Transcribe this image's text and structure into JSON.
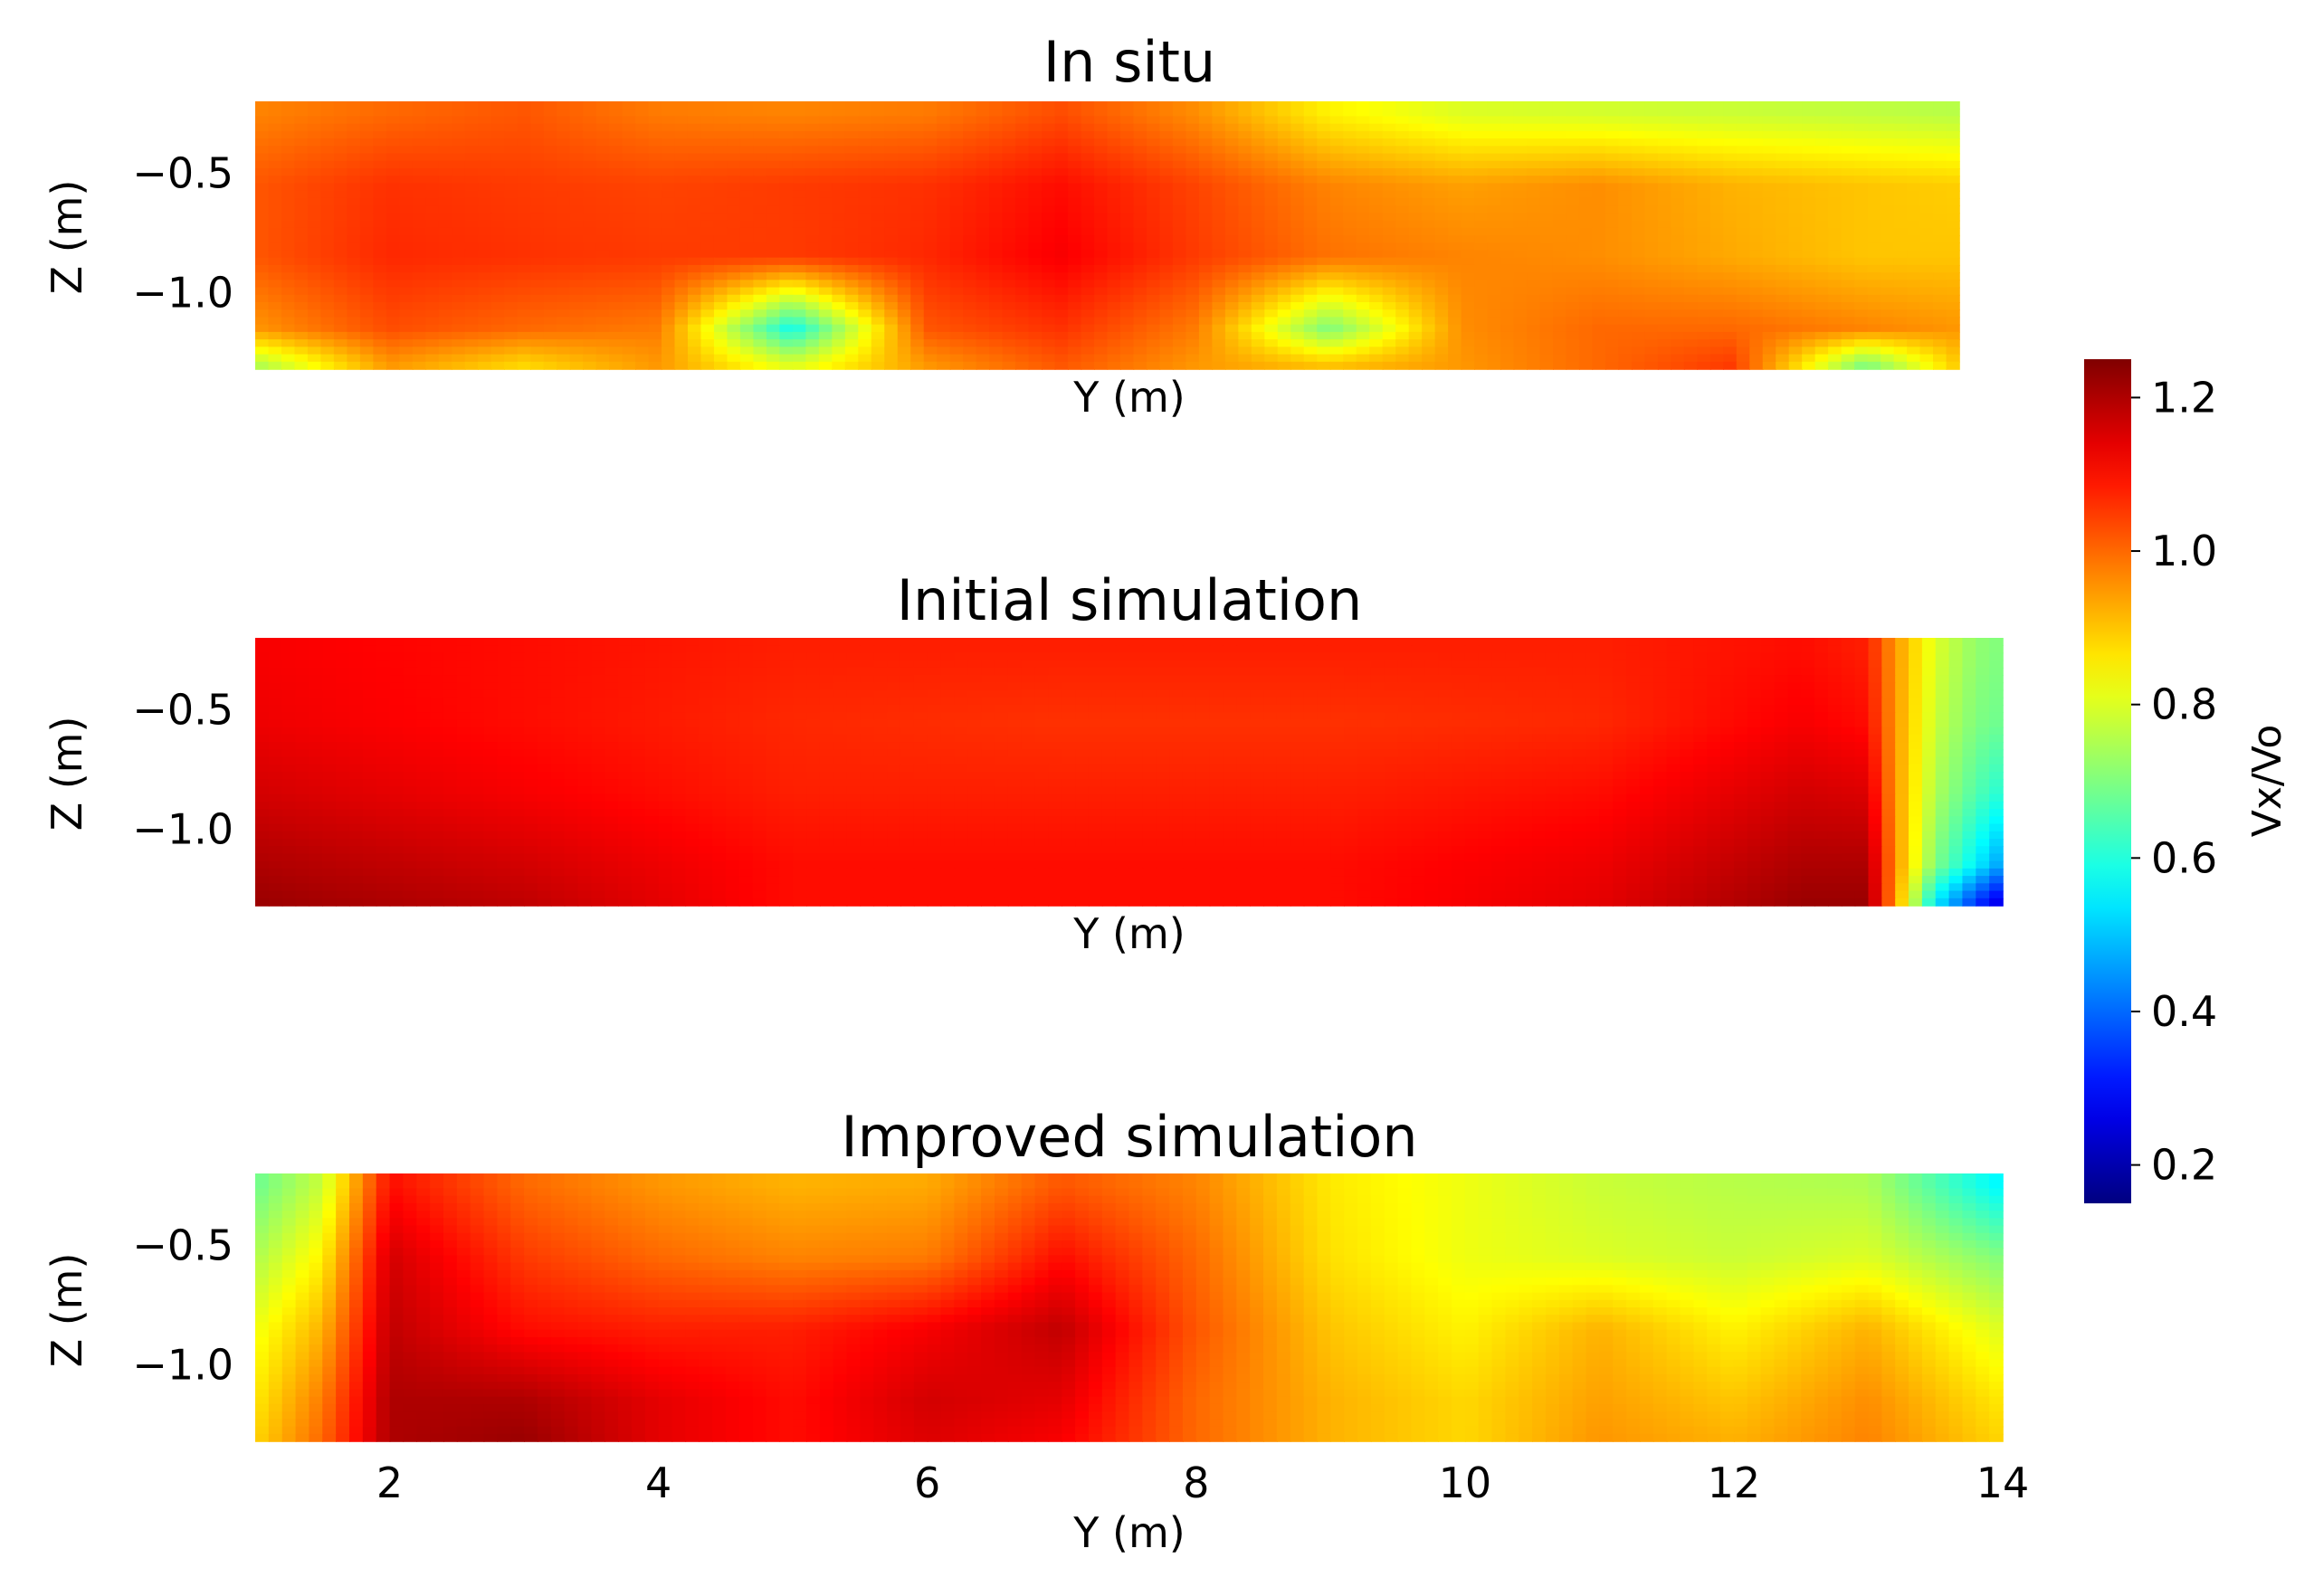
{
  "chart_data": [
    {
      "type": "heatmap",
      "title": "In situ",
      "xlabel": "Y (m)",
      "ylabel": "Z (m)",
      "xlim": [
        1.0,
        13.7
      ],
      "ylim": [
        -1.32,
        -0.2
      ],
      "yticks": [
        -0.5,
        -1.0
      ],
      "ytick_labels": [
        "−0.5",
        "−1.0"
      ],
      "field": {
        "x": [
          1.0,
          2.0,
          3.0,
          4.0,
          5.0,
          6.0,
          7.0,
          8.0,
          9.0,
          10.0,
          11.0,
          12.0,
          13.0,
          13.7
        ],
        "z": [
          -0.25,
          -0.55,
          -0.85,
          -1.15,
          -1.3
        ],
        "values": [
          [
            0.97,
            1.0,
            1.02,
            0.98,
            0.97,
            0.98,
            1.03,
            0.96,
            0.85,
            0.8,
            0.79,
            0.78,
            0.77,
            0.76
          ],
          [
            1.02,
            1.06,
            1.05,
            1.04,
            1.05,
            1.06,
            1.1,
            1.04,
            0.97,
            0.94,
            0.96,
            0.92,
            0.9,
            0.89
          ],
          [
            1.02,
            1.07,
            1.06,
            1.05,
            1.05,
            1.07,
            1.12,
            1.05,
            0.99,
            0.97,
            0.96,
            0.93,
            0.9,
            0.9
          ],
          [
            0.95,
            1.03,
            1.0,
            0.98,
            0.58,
            1.02,
            1.06,
            0.98,
            0.7,
            0.96,
            1.0,
            1.0,
            0.97,
            0.95
          ],
          [
            0.75,
            0.95,
            0.88,
            0.95,
            0.8,
            0.95,
            1.02,
            0.95,
            0.9,
            0.95,
            1.0,
            1.05,
            0.7,
            0.9
          ]
        ]
      }
    },
    {
      "type": "heatmap",
      "title": "Initial simulation",
      "xlabel": "Y (m)",
      "ylabel": "Z (m)",
      "xlim": [
        1.0,
        14.0
      ],
      "ylim": [
        -1.32,
        -0.2
      ],
      "yticks": [
        -0.5,
        -1.0
      ],
      "ytick_labels": [
        "−0.5",
        "−1.0"
      ],
      "field": {
        "x": [
          1.0,
          3.0,
          5.0,
          7.0,
          9.0,
          11.0,
          12.5,
          13.0,
          13.2,
          13.5,
          13.8,
          14.0
        ],
        "z": [
          -0.25,
          -0.55,
          -0.85,
          -1.15,
          -1.3
        ],
        "values": [
          [
            1.12,
            1.1,
            1.08,
            1.08,
            1.08,
            1.08,
            1.1,
            1.08,
            0.95,
            0.8,
            0.72,
            0.7
          ],
          [
            1.13,
            1.1,
            1.07,
            1.06,
            1.06,
            1.07,
            1.12,
            1.1,
            0.95,
            0.78,
            0.7,
            0.68
          ],
          [
            1.16,
            1.12,
            1.08,
            1.08,
            1.08,
            1.1,
            1.16,
            1.15,
            0.95,
            0.75,
            0.65,
            0.6
          ],
          [
            1.2,
            1.16,
            1.1,
            1.1,
            1.1,
            1.13,
            1.2,
            1.2,
            0.96,
            0.7,
            0.55,
            0.45
          ],
          [
            1.22,
            1.18,
            1.1,
            1.1,
            1.1,
            1.14,
            1.22,
            1.22,
            0.95,
            0.55,
            0.35,
            0.25
          ]
        ]
      }
    },
    {
      "type": "heatmap",
      "title": "Improved simulation",
      "xlabel": "Y (m)",
      "ylabel": "Z (m)",
      "xlim": [
        1.0,
        14.0
      ],
      "ylim": [
        -1.32,
        -0.2
      ],
      "xticks": [
        2,
        4,
        6,
        8,
        10,
        12,
        14
      ],
      "xtick_labels": [
        "2",
        "4",
        "6",
        "8",
        "10",
        "12",
        "14"
      ],
      "yticks": [
        -0.5,
        -1.0
      ],
      "ytick_labels": [
        "−0.5",
        "−1.0"
      ],
      "field": {
        "x": [
          1.0,
          1.5,
          2.0,
          3.0,
          4.0,
          5.0,
          6.0,
          7.0,
          8.0,
          9.0,
          10.0,
          11.0,
          12.0,
          13.0,
          14.0
        ],
        "z": [
          -0.25,
          -0.55,
          -0.85,
          -1.15,
          -1.3
        ],
        "values": [
          [
            0.68,
            0.78,
            1.1,
            1.0,
            0.95,
            0.92,
            0.93,
            1.02,
            0.97,
            0.86,
            0.82,
            0.78,
            0.76,
            0.75,
            0.55
          ],
          [
            0.75,
            0.85,
            1.16,
            1.05,
            1.0,
            0.97,
            0.98,
            1.1,
            1.0,
            0.87,
            0.82,
            0.8,
            0.78,
            0.8,
            0.7
          ],
          [
            0.82,
            0.92,
            1.18,
            1.1,
            1.08,
            1.08,
            1.12,
            1.18,
            1.02,
            0.9,
            0.85,
            0.92,
            0.85,
            0.92,
            0.8
          ],
          [
            0.86,
            0.98,
            1.2,
            1.2,
            1.14,
            1.1,
            1.16,
            1.14,
            1.0,
            0.92,
            0.88,
            0.94,
            0.9,
            0.96,
            0.86
          ],
          [
            0.88,
            1.0,
            1.2,
            1.22,
            1.14,
            1.1,
            1.15,
            1.12,
            1.0,
            0.92,
            0.88,
            0.95,
            0.92,
            0.97,
            0.88
          ]
        ]
      }
    }
  ],
  "colorbar": {
    "label": "Vx/Vo",
    "range": [
      0.15,
      1.25
    ],
    "ticks": [
      1.2,
      1.0,
      0.8,
      0.6,
      0.4,
      0.2
    ],
    "tick_labels": [
      "1.2",
      "1.0",
      "0.8",
      "0.6",
      "0.4",
      "0.2"
    ],
    "colormap": "jet"
  }
}
